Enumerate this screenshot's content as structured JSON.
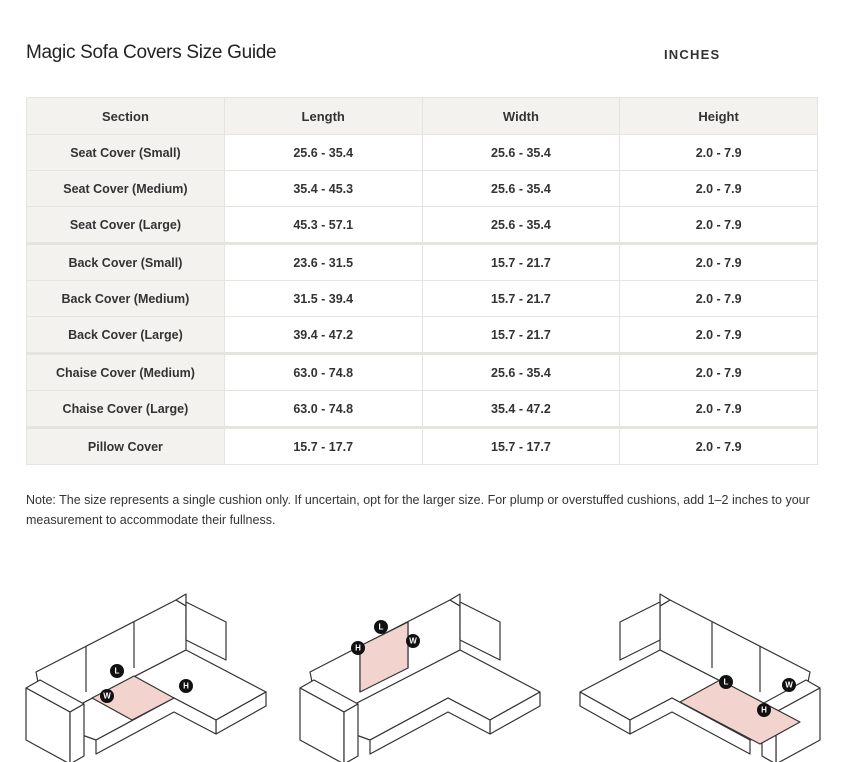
{
  "header": {
    "title": "Magic Sofa Covers Size Guide",
    "unit": "INCHES"
  },
  "table": {
    "columns": [
      "Section",
      "Length",
      "Width",
      "Height"
    ],
    "groups": [
      [
        [
          "Seat Cover (Small)",
          "25.6 - 35.4",
          "25.6 - 35.4",
          "2.0 - 7.9"
        ],
        [
          "Seat Cover (Medium)",
          "35.4 - 45.3",
          "25.6 - 35.4",
          "2.0 - 7.9"
        ],
        [
          "Seat Cover (Large)",
          "45.3 - 57.1",
          "25.6 - 35.4",
          "2.0 - 7.9"
        ]
      ],
      [
        [
          "Back Cover (Small)",
          "23.6 - 31.5",
          "15.7 - 21.7",
          "2.0 - 7.9"
        ],
        [
          "Back Cover (Medium)",
          "31.5 - 39.4",
          "15.7 - 21.7",
          "2.0 - 7.9"
        ],
        [
          "Back Cover (Large)",
          "39.4 - 47.2",
          "15.7 - 21.7",
          "2.0 - 7.9"
        ]
      ],
      [
        [
          "Chaise Cover (Medium)",
          "63.0 - 74.8",
          "25.6 - 35.4",
          "2.0 - 7.9"
        ],
        [
          "Chaise Cover (Large)",
          "63.0 - 74.8",
          "35.4 - 47.2",
          "2.0 - 7.9"
        ]
      ],
      [
        [
          "Pillow Cover",
          "15.7 - 17.7",
          "15.7 - 17.7",
          "2.0 - 7.9"
        ]
      ]
    ]
  },
  "note": "Note: The size represents a single cushion only. If uncertain, opt for the larger size. For plump or overstuffed cushions, add 1–2 inches to your measurement to accommodate their fullness.",
  "diagrams": [
    [
      "L",
      "W",
      "H"
    ],
    [
      "L",
      "W",
      "H"
    ],
    [
      "L",
      "W",
      "H"
    ]
  ]
}
